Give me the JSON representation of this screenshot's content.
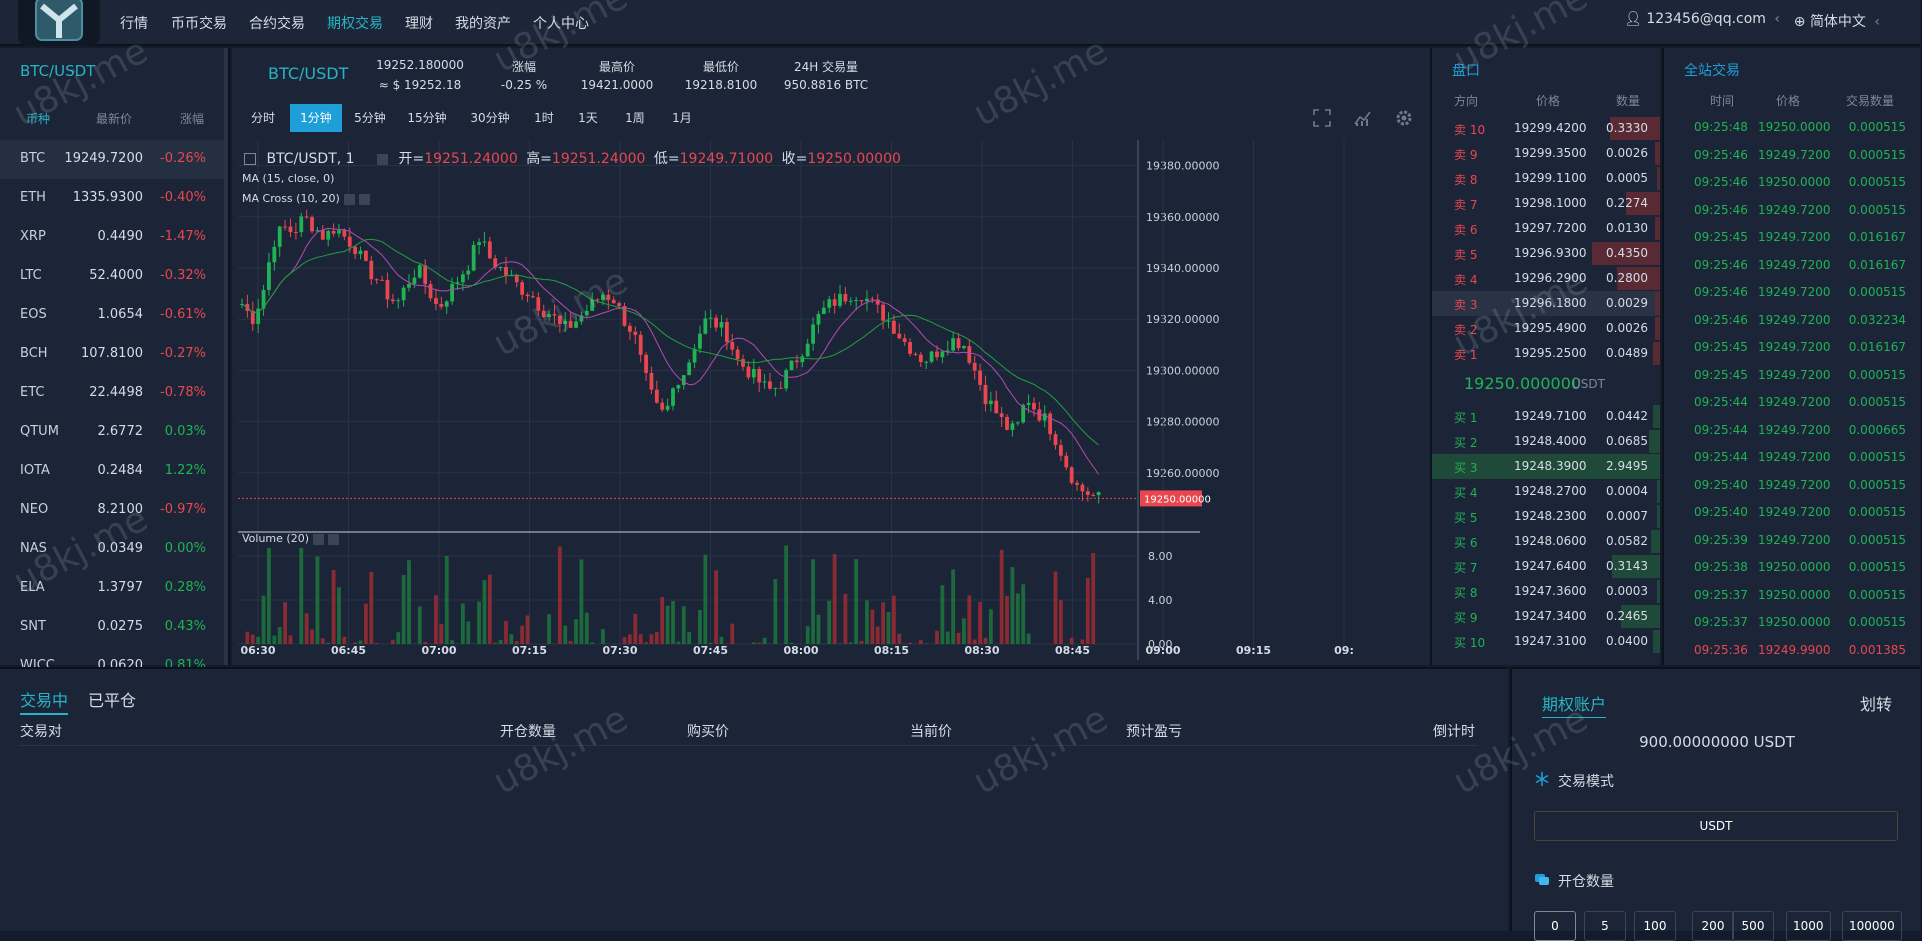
{
  "nav": {
    "items": [
      "行情",
      "币币交易",
      "合约交易",
      "期权交易",
      "理财",
      "我的资产",
      "个人中心"
    ],
    "active_index": 3,
    "user": "123456@qq.com",
    "user_caret": "‹",
    "lang": "简体中文",
    "lang_caret": "‹"
  },
  "market": {
    "title": "BTC/USDT",
    "headers": [
      "币种",
      "最新价",
      "涨幅"
    ],
    "rows": [
      {
        "symbol": "BTC",
        "price": "19249.7200",
        "change": "-0.26%",
        "dir": "dn"
      },
      {
        "symbol": "ETH",
        "price": "1335.9300",
        "change": "-0.40%",
        "dir": "dn"
      },
      {
        "symbol": "XRP",
        "price": "0.4490",
        "change": "-1.47%",
        "dir": "dn"
      },
      {
        "symbol": "LTC",
        "price": "52.4000",
        "change": "-0.32%",
        "dir": "dn"
      },
      {
        "symbol": "EOS",
        "price": "1.0654",
        "change": "-0.61%",
        "dir": "dn"
      },
      {
        "symbol": "BCH",
        "price": "107.8100",
        "change": "-0.27%",
        "dir": "dn"
      },
      {
        "symbol": "ETC",
        "price": "22.4498",
        "change": "-0.78%",
        "dir": "dn"
      },
      {
        "symbol": "QTUM",
        "price": "2.6772",
        "change": "0.03%",
        "dir": "up"
      },
      {
        "symbol": "IOTA",
        "price": "0.2484",
        "change": "1.22%",
        "dir": "up"
      },
      {
        "symbol": "NEO",
        "price": "8.2100",
        "change": "-0.97%",
        "dir": "dn"
      },
      {
        "symbol": "NAS",
        "price": "0.0349",
        "change": "0.00%",
        "dir": "up"
      },
      {
        "symbol": "ELA",
        "price": "1.3797",
        "change": "0.28%",
        "dir": "up"
      },
      {
        "symbol": "SNT",
        "price": "0.0275",
        "change": "0.43%",
        "dir": "up"
      },
      {
        "symbol": "WICC",
        "price": "0.0620",
        "change": "0.81%",
        "dir": "up"
      }
    ]
  },
  "ticker": {
    "symbol": "BTC/USDT",
    "price": "19252.180000",
    "price_usd": "≈ $ 19252.18",
    "change_label": "涨幅",
    "change": "-0.25 %",
    "high_label": "最高价",
    "high": "19421.0000",
    "low_label": "最低价",
    "low": "19218.8100",
    "vol_label": "24H 交易量",
    "vol": "950.8816 BTC"
  },
  "timeframes": [
    "分时",
    "1分钟",
    "5分钟",
    "15分钟",
    "30分钟",
    "1时",
    "1天",
    "1周",
    "1月"
  ],
  "timeframe_active": 1,
  "chart_legend": {
    "symbol": "BTC/USDT, 1",
    "open_label": "开=",
    "open": "19251.24000",
    "high_label": "高=",
    "high": "19251.24000",
    "low_label": "低=",
    "low": "19249.71000",
    "close_label": "收=",
    "close": "19250.00000",
    "ma": "MA (15, close, 0)",
    "ma_cross": "MA Cross (10, 20)",
    "volume": "Volume (20)"
  },
  "chart_data": {
    "type": "candlestick",
    "x_ticks": [
      "06:30",
      "06:45",
      "07:00",
      "07:15",
      "07:30",
      "07:45",
      "08:00",
      "08:15",
      "08:30",
      "08:45",
      "09:00",
      "09:15",
      "09:"
    ],
    "y_ticks": [
      "19380.00000",
      "19360.00000",
      "19340.00000",
      "19320.00000",
      "19300.00000",
      "19280.00000",
      "19260.00000"
    ],
    "ylim": [
      19240,
      19390
    ],
    "last_price_label": "19250.00000",
    "last_price": 19250,
    "volume_ticks": [
      "8.00",
      "4.00",
      "0.00"
    ],
    "volume_ylim": [
      0,
      10
    ],
    "close_path": [
      19326,
      19320,
      19330,
      19350,
      19356,
      19354,
      19360,
      19356,
      19352,
      19356,
      19352,
      19348,
      19340,
      19336,
      19330,
      19326,
      19334,
      19340,
      19332,
      19324,
      19330,
      19336,
      19342,
      19352,
      19344,
      19340,
      19336,
      19332,
      19330,
      19324,
      19322,
      19316,
      19318,
      19322,
      19326,
      19330,
      19328,
      19320,
      19314,
      19298,
      19286,
      19282,
      19296,
      19300,
      19312,
      19320,
      19318,
      19314,
      19304,
      19300,
      19296,
      19292,
      19294,
      19300,
      19306,
      19314,
      19322,
      19326,
      19328,
      19330,
      19330,
      19326,
      19322,
      19318,
      19312,
      19308,
      19304,
      19306,
      19310,
      19312,
      19310,
      19300,
      19290,
      19284,
      19278,
      19276,
      19290,
      19284,
      19280,
      19272,
      19262,
      19254,
      19252,
      19250
    ]
  },
  "orderbook": {
    "title": "盘口",
    "headers": [
      "方向",
      "价格",
      "数量"
    ],
    "asks": [
      {
        "side": "卖 10",
        "price": "19299.4200",
        "qty": "0.3330",
        "depth": 0.22
      },
      {
        "side": "卖 9",
        "price": "19299.3500",
        "qty": "0.0026",
        "depth": 0.02
      },
      {
        "side": "卖 8",
        "price": "19299.1100",
        "qty": "0.0005",
        "depth": 0.01
      },
      {
        "side": "卖 7",
        "price": "19298.1000",
        "qty": "0.2274",
        "depth": 0.15
      },
      {
        "side": "卖 6",
        "price": "19297.7200",
        "qty": "0.0130",
        "depth": 0.02
      },
      {
        "side": "卖 5",
        "price": "19296.9300",
        "qty": "0.4350",
        "depth": 0.3
      },
      {
        "side": "卖 4",
        "price": "19296.2900",
        "qty": "0.2800",
        "depth": 0.19
      },
      {
        "side": "卖 3",
        "price": "19296.1800",
        "qty": "0.0029",
        "depth": 0.02
      },
      {
        "side": "卖 2",
        "price": "19295.4900",
        "qty": "0.0026",
        "depth": 0.02
      },
      {
        "side": "卖 1",
        "price": "19295.2500",
        "qty": "0.0489",
        "depth": 0.03
      }
    ],
    "last_price": "19250.000000",
    "last_unit": "USDT",
    "bids": [
      {
        "side": "买 1",
        "price": "19249.7100",
        "qty": "0.0442",
        "depth": 0.03
      },
      {
        "side": "买 2",
        "price": "19248.4000",
        "qty": "0.0685",
        "depth": 0.05
      },
      {
        "side": "买 3",
        "price": "19248.3900",
        "qty": "2.9495",
        "depth": 1.0
      },
      {
        "side": "买 4",
        "price": "19248.2700",
        "qty": "0.0004",
        "depth": 0.01
      },
      {
        "side": "买 5",
        "price": "19248.2300",
        "qty": "0.0007",
        "depth": 0.01
      },
      {
        "side": "买 6",
        "price": "19248.0600",
        "qty": "0.0582",
        "depth": 0.04
      },
      {
        "side": "买 7",
        "price": "19247.6400",
        "qty": "0.3143",
        "depth": 0.21
      },
      {
        "side": "买 8",
        "price": "19247.3600",
        "qty": "0.0003",
        "depth": 0.01
      },
      {
        "side": "买 9",
        "price": "19247.3400",
        "qty": "0.2465",
        "depth": 0.17
      },
      {
        "side": "买 10",
        "price": "19247.3100",
        "qty": "0.0400",
        "depth": 0.03
      }
    ]
  },
  "trades": {
    "title": "全站交易",
    "headers": [
      "时间",
      "价格",
      "交易数量"
    ],
    "rows": [
      {
        "time": "09:25:48",
        "price": "19250.0000",
        "qty": "0.000515",
        "dir": "up"
      },
      {
        "time": "09:25:46",
        "price": "19249.7200",
        "qty": "0.000515",
        "dir": "up"
      },
      {
        "time": "09:25:46",
        "price": "19250.0000",
        "qty": "0.000515",
        "dir": "up"
      },
      {
        "time": "09:25:46",
        "price": "19249.7200",
        "qty": "0.000515",
        "dir": "up"
      },
      {
        "time": "09:25:45",
        "price": "19249.7200",
        "qty": "0.016167",
        "dir": "up"
      },
      {
        "time": "09:25:46",
        "price": "19249.7200",
        "qty": "0.016167",
        "dir": "up"
      },
      {
        "time": "09:25:46",
        "price": "19249.7200",
        "qty": "0.000515",
        "dir": "up"
      },
      {
        "time": "09:25:46",
        "price": "19249.7200",
        "qty": "0.032234",
        "dir": "up"
      },
      {
        "time": "09:25:45",
        "price": "19249.7200",
        "qty": "0.016167",
        "dir": "up"
      },
      {
        "time": "09:25:45",
        "price": "19249.7200",
        "qty": "0.000515",
        "dir": "up"
      },
      {
        "time": "09:25:44",
        "price": "19249.7200",
        "qty": "0.000515",
        "dir": "up"
      },
      {
        "time": "09:25:44",
        "price": "19249.7200",
        "qty": "0.000665",
        "dir": "up"
      },
      {
        "time": "09:25:44",
        "price": "19249.7200",
        "qty": "0.000515",
        "dir": "up"
      },
      {
        "time": "09:25:40",
        "price": "19249.7200",
        "qty": "0.000515",
        "dir": "up"
      },
      {
        "time": "09:25:40",
        "price": "19249.7200",
        "qty": "0.000515",
        "dir": "up"
      },
      {
        "time": "09:25:39",
        "price": "19249.7200",
        "qty": "0.000515",
        "dir": "up"
      },
      {
        "time": "09:25:38",
        "price": "19250.0000",
        "qty": "0.000515",
        "dir": "up"
      },
      {
        "time": "09:25:37",
        "price": "19250.0000",
        "qty": "0.000515",
        "dir": "up"
      },
      {
        "time": "09:25:37",
        "price": "19250.0000",
        "qty": "0.000515",
        "dir": "up"
      },
      {
        "time": "09:25:36",
        "price": "19249.9900",
        "qty": "0.001385",
        "dir": "dn"
      }
    ]
  },
  "positions": {
    "tabs": [
      "交易中",
      "已平仓"
    ],
    "active_tab": 0,
    "columns": [
      "交易对",
      "开仓数量",
      "购买价",
      "当前价",
      "预计盈亏",
      "倒计时"
    ]
  },
  "account": {
    "title": "期权账户",
    "transfer": "划转",
    "balance": "900.00000000 USDT",
    "mode_label": "交易模式",
    "mode_value": "USDT",
    "qty_label": "开仓数量",
    "qty_options": [
      "0",
      "5",
      "100",
      "200",
      "500",
      "1000",
      "100000"
    ]
  },
  "watermark": "u8kj.me",
  "colors": {
    "accent": "#27b4c4",
    "up": "#1fb354",
    "down": "#e8474f",
    "active_tab": "#1f9fd8"
  }
}
